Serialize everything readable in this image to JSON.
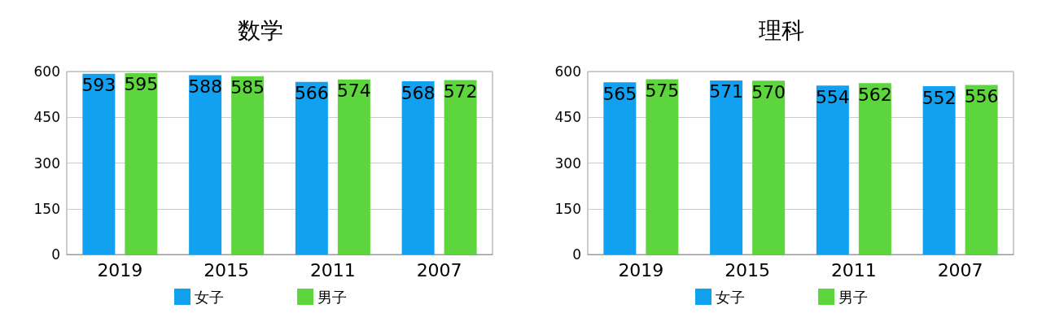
{
  "chart_data": [
    {
      "type": "bar",
      "title": "数学",
      "categories": [
        "2019",
        "2015",
        "2011",
        "2007"
      ],
      "series": [
        {
          "name": "女子",
          "color": "#12a0f0",
          "values": [
            593,
            588,
            566,
            568
          ]
        },
        {
          "name": "男子",
          "color": "#5dd53c",
          "values": [
            595,
            585,
            574,
            572
          ]
        }
      ],
      "ylim": [
        0,
        600
      ],
      "yticks": [
        0,
        150,
        300,
        450,
        600
      ],
      "grid": "y",
      "legend": "bottom",
      "data_labels": true
    },
    {
      "type": "bar",
      "title": "理科",
      "categories": [
        "2019",
        "2015",
        "2011",
        "2007"
      ],
      "series": [
        {
          "name": "女子",
          "color": "#12a0f0",
          "values": [
            565,
            571,
            554,
            552
          ]
        },
        {
          "name": "男子",
          "color": "#5dd53c",
          "values": [
            575,
            570,
            562,
            556
          ]
        }
      ],
      "ylim": [
        0,
        600
      ],
      "yticks": [
        0,
        150,
        300,
        450,
        600
      ],
      "grid": "y",
      "legend": "bottom",
      "data_labels": true
    }
  ]
}
